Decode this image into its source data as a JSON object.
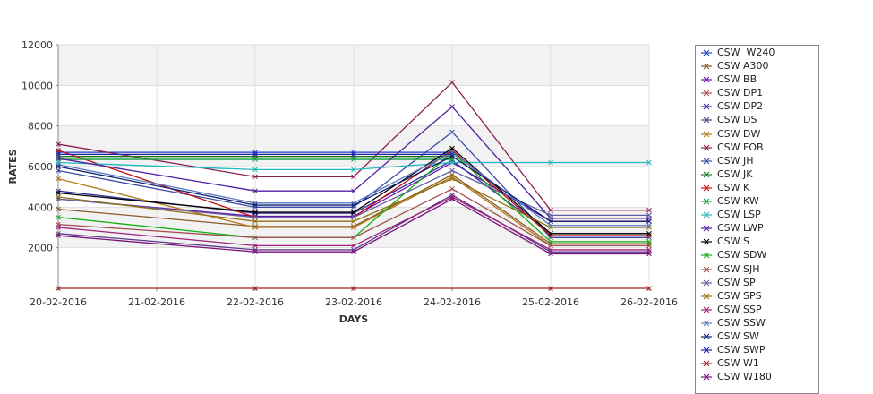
{
  "chart_data": {
    "type": "line",
    "title": "",
    "xlabel": "DAYS",
    "ylabel": "RATES",
    "categories": [
      "20-02-2016",
      "21-02-2016",
      "22-02-2016",
      "23-02-2016",
      "24-02-2016",
      "25-02-2016",
      "26-02-2016"
    ],
    "ylim": [
      0,
      12000
    ],
    "yticks": [
      2000,
      4000,
      6000,
      8000,
      10000,
      12000
    ],
    "grid": true,
    "legend_position": "right",
    "series": [
      {
        "name": "CSW  W240",
        "color": "#1f3fc4",
        "values": [
          6700,
          null,
          6700,
          6700,
          6700,
          null,
          null
        ]
      },
      {
        "name": "CSW A300",
        "color": "#8a5a2a",
        "values": [
          3900,
          null,
          3050,
          3050,
          5600,
          2200,
          2200
        ]
      },
      {
        "name": "CSW BB",
        "color": "#6a0fb0",
        "values": [
          4400,
          null,
          3550,
          3550,
          6200,
          3300,
          3300
        ]
      },
      {
        "name": "CSW DP1",
        "color": "#b05050",
        "values": [
          null,
          null,
          null,
          null,
          null,
          null,
          null
        ]
      },
      {
        "name": "CSW DP2",
        "color": "#3030a0",
        "values": [
          4800,
          null,
          3700,
          3700,
          6300,
          2700,
          2700
        ]
      },
      {
        "name": "CSW DS",
        "color": "#5a3a8a",
        "values": [
          2700,
          null,
          1900,
          1900,
          4600,
          1800,
          1800
        ]
      },
      {
        "name": "CSW DW",
        "color": "#b87a20",
        "values": [
          5400,
          null,
          3000,
          3000,
          5500,
          2100,
          2100
        ]
      },
      {
        "name": "CSW FOB",
        "color": "#8a2050",
        "values": [
          7100,
          null,
          5500,
          5500,
          10150,
          3850,
          3850
        ]
      },
      {
        "name": "CSW JH",
        "color": "#3a4aa8",
        "values": [
          5800,
          null,
          4000,
          4000,
          7700,
          2500,
          2500
        ]
      },
      {
        "name": "CSW JK",
        "color": "#1a7a1a",
        "values": [
          6500,
          null,
          6500,
          6500,
          6500,
          null,
          null
        ]
      },
      {
        "name": "CSW K",
        "color": "#c01010",
        "values": [
          6800,
          null,
          3500,
          3500,
          6800,
          2600,
          2600
        ]
      },
      {
        "name": "CSW KW",
        "color": "#10a040",
        "values": [
          6350,
          null,
          6350,
          6350,
          6350,
          null,
          null
        ]
      },
      {
        "name": "CSW LSP",
        "color": "#20b8c0",
        "values": [
          6200,
          null,
          5850,
          5850,
          6200,
          6200,
          6200
        ]
      },
      {
        "name": "CSW LWP",
        "color": "#5020a0",
        "values": [
          6400,
          null,
          4800,
          4800,
          8950,
          3450,
          3450
        ]
      },
      {
        "name": "CSW S",
        "color": "#000000",
        "values": [
          4700,
          null,
          3750,
          3750,
          6900,
          2700,
          2700
        ]
      },
      {
        "name": "CSW SDW",
        "color": "#10b010",
        "values": [
          3500,
          null,
          2500,
          2500,
          6700,
          2300,
          2300
        ]
      },
      {
        "name": "CSW SJH",
        "color": "#a05050",
        "values": [
          3150,
          null,
          2500,
          2500,
          4900,
          2100,
          2100
        ]
      },
      {
        "name": "CSW SP",
        "color": "#6060a0",
        "values": [
          4400,
          null,
          3500,
          3500,
          5800,
          3600,
          3600
        ]
      },
      {
        "name": "CSW SPS",
        "color": "#907010",
        "values": [
          4500,
          null,
          3300,
          3300,
          5400,
          3000,
          3000
        ]
      },
      {
        "name": "CSW SSP",
        "color": "#a0207a",
        "values": [
          3000,
          null,
          2100,
          2100,
          4500,
          1900,
          1900
        ]
      },
      {
        "name": "CSW SSW",
        "color": "#5a7ac0",
        "values": [
          6100,
          null,
          4200,
          4200,
          6700,
          3100,
          3100
        ]
      },
      {
        "name": "CSW SW",
        "color": "#102070",
        "values": [
          6000,
          null,
          4100,
          4100,
          6500,
          3300,
          3300
        ]
      },
      {
        "name": "CSW SWP",
        "color": "#2020b0",
        "values": [
          6600,
          null,
          6600,
          6600,
          6600,
          null,
          null
        ]
      },
      {
        "name": "CSW W1",
        "color": "#a02020",
        "values": [
          0,
          null,
          0,
          0,
          null,
          0,
          0
        ]
      },
      {
        "name": "CSW W180",
        "color": "#7a107a",
        "values": [
          2600,
          null,
          1800,
          1800,
          4400,
          1700,
          1700
        ]
      }
    ]
  }
}
